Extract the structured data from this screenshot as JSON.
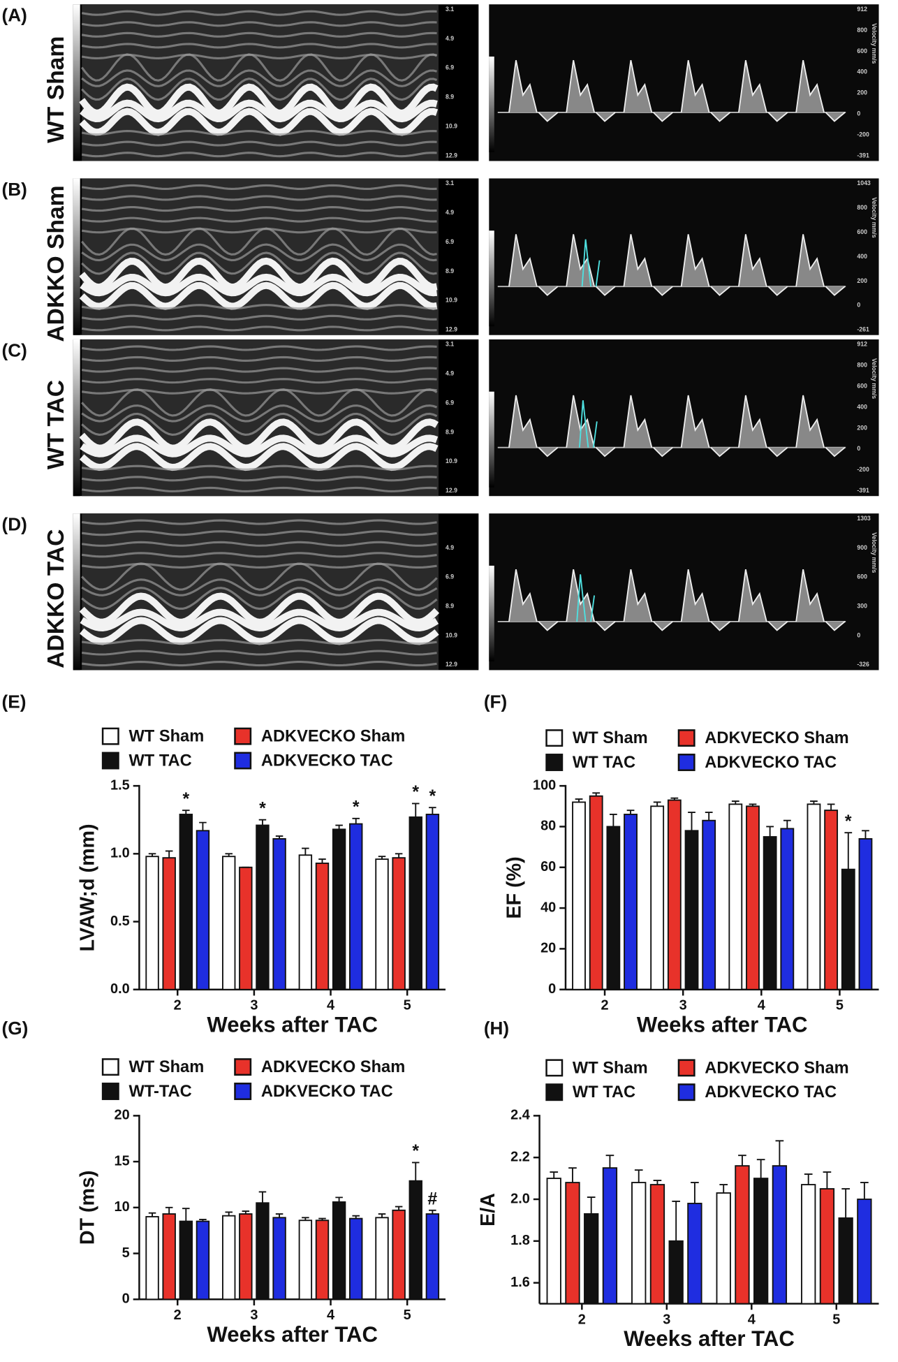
{
  "echo_panels": [
    {
      "label": "(A)",
      "row_label": "WT Sham",
      "depth_ticks": [
        3.1,
        4.9,
        6.9,
        8.9,
        10.9,
        12.9
      ],
      "velocity_label": "Velocity mm/s",
      "velocity_ticks": [
        912,
        800,
        600,
        400,
        200,
        0,
        -200,
        -391
      ]
    },
    {
      "label": "(B)",
      "row_label": "ADKKO Sham",
      "depth_ticks": [
        3.1,
        4.9,
        6.9,
        8.9,
        10.9,
        12.9
      ],
      "velocity_label": "Velocity mm/s",
      "velocity_ticks": [
        1043,
        800,
        600,
        400,
        200,
        0,
        -261
      ]
    },
    {
      "label": "(C)",
      "row_label": "WT TAC",
      "depth_ticks": [
        3.1,
        4.9,
        6.9,
        8.9,
        10.9,
        12.9
      ],
      "velocity_label": "Velocity mm/s",
      "velocity_ticks": [
        912,
        800,
        600,
        400,
        200,
        0,
        -200,
        -391
      ]
    },
    {
      "label": "(D)",
      "row_label": "ADKKO TAC",
      "depth_ticks": [
        4.9,
        6.9,
        8.9,
        10.9,
        12.9
      ],
      "velocity_label": "Velocity mm/s",
      "velocity_ticks": [
        1303,
        900,
        600,
        300,
        0,
        -326
      ]
    }
  ],
  "chart_data": [
    {
      "type": "bar",
      "panel": "(E)",
      "y_label": "LVAW;d (mm)",
      "x_label": "Weeks after TAC",
      "categories": [
        "2",
        "3",
        "4",
        "5"
      ],
      "series": [
        {
          "name": "WT Sham",
          "color": "#ffffff",
          "values": [
            0.98,
            0.98,
            0.99,
            0.96
          ],
          "errors": [
            0.02,
            0.02,
            0.05,
            0.02
          ]
        },
        {
          "name": "ADKVECKO Sham",
          "color": "#e8322a",
          "values": [
            0.97,
            0.9,
            0.93,
            0.97
          ],
          "errors": [
            0.05,
            0,
            0.03,
            0.03
          ]
        },
        {
          "name": "WT TAC",
          "color": "#111111",
          "values": [
            1.29,
            1.21,
            1.18,
            1.27
          ],
          "errors": [
            0.03,
            0.04,
            0.03,
            0.1
          ]
        },
        {
          "name": "ADKVECKO TAC",
          "color": "#1f2de0",
          "values": [
            1.17,
            1.11,
            1.22,
            1.29
          ],
          "errors": [
            0.06,
            0.02,
            0.04,
            0.05
          ]
        }
      ],
      "ylim": [
        0,
        1.5
      ],
      "yticks": [
        {
          "value": 0,
          "label": "0.0"
        },
        0.5,
        {
          "value": 1,
          "label": "1.0"
        },
        1.5
      ],
      "annotations": [
        {
          "text": "*",
          "series": 2,
          "category": 0
        },
        {
          "text": "*",
          "series": 2,
          "category": 1
        },
        {
          "text": "*",
          "series": 3,
          "category": 2
        },
        {
          "text": "*",
          "series": 2,
          "category": 3
        },
        {
          "text": "*",
          "series": 3,
          "category": 3
        }
      ]
    },
    {
      "type": "bar",
      "panel": "(F)",
      "y_label": "EF (%)",
      "x_label": "Weeks after TAC",
      "categories": [
        "2",
        "3",
        "4",
        "5"
      ],
      "series": [
        {
          "name": "WT Sham",
          "color": "#ffffff",
          "values": [
            92,
            90,
            91,
            91
          ],
          "errors": [
            1.5,
            2,
            1.5,
            1.5
          ]
        },
        {
          "name": "ADKVECKO Sham",
          "color": "#e8322a",
          "values": [
            95,
            93,
            90,
            88
          ],
          "errors": [
            1.5,
            1,
            1,
            3
          ]
        },
        {
          "name": "WT TAC",
          "color": "#111111",
          "values": [
            80,
            78,
            75,
            59
          ],
          "errors": [
            6,
            9,
            5,
            18
          ]
        },
        {
          "name": "ADKVECKO TAC",
          "color": "#1f2de0",
          "values": [
            86,
            83,
            79,
            74
          ],
          "errors": [
            2,
            4,
            4,
            4
          ]
        }
      ],
      "ylim": [
        0,
        100
      ],
      "yticks": [
        0,
        20,
        40,
        60,
        80,
        100
      ],
      "annotations": [
        {
          "text": "*",
          "series": 2,
          "category": 3
        }
      ]
    },
    {
      "type": "bar",
      "panel": "(G)",
      "y_label": "DT (ms)",
      "x_label": "Weeks after TAC",
      "categories": [
        "2",
        "3",
        "4",
        "5"
      ],
      "series": [
        {
          "name": "WT Sham",
          "color": "#ffffff",
          "values": [
            9.0,
            9.1,
            8.6,
            8.9
          ],
          "errors": [
            0.4,
            0.4,
            0.3,
            0.4
          ]
        },
        {
          "name": "ADKVECKO Sham",
          "color": "#e8322a",
          "values": [
            9.3,
            9.3,
            8.6,
            9.7
          ],
          "errors": [
            0.7,
            0.3,
            0.2,
            0.4
          ]
        },
        {
          "name": "WT-TAC",
          "color": "#111111",
          "values": [
            8.5,
            10.5,
            10.6,
            12.9
          ],
          "errors": [
            1.4,
            1.2,
            0.5,
            2.0
          ]
        },
        {
          "name": "ADKVECKO TAC",
          "color": "#1f2de0",
          "values": [
            8.5,
            8.9,
            8.8,
            9.3
          ],
          "errors": [
            0.2,
            0.4,
            0.3,
            0.4
          ]
        }
      ],
      "ylim": [
        0,
        20
      ],
      "yticks": [
        0,
        5,
        10,
        15,
        20
      ],
      "annotations": [
        {
          "text": "*",
          "series": 2,
          "category": 3
        },
        {
          "text": "#",
          "series": 3,
          "category": 3
        }
      ]
    },
    {
      "type": "bar",
      "panel": "(H)",
      "y_label": "E/A",
      "x_label": "Weeks after TAC",
      "categories": [
        "2",
        "3",
        "4",
        "5"
      ],
      "series": [
        {
          "name": "WT Sham",
          "color": "#ffffff",
          "values": [
            2.1,
            2.08,
            2.03,
            2.07
          ],
          "errors": [
            0.03,
            0.06,
            0.04,
            0.05
          ]
        },
        {
          "name": "ADKVECKO Sham",
          "color": "#e8322a",
          "values": [
            2.08,
            2.07,
            2.16,
            2.05
          ],
          "errors": [
            0.07,
            0.02,
            0.05,
            0.08
          ]
        },
        {
          "name": "WT TAC",
          "color": "#111111",
          "values": [
            1.93,
            1.8,
            2.1,
            1.91
          ],
          "errors": [
            0.08,
            0.19,
            0.09,
            0.14
          ]
        },
        {
          "name": "ADKVECKO TAC",
          "color": "#1f2de0",
          "values": [
            2.15,
            1.98,
            2.16,
            2.0
          ],
          "errors": [
            0.06,
            0.1,
            0.12,
            0.08
          ]
        }
      ],
      "ylim": [
        1.5,
        2.4
      ],
      "yticks": [
        1.6,
        1.8,
        {
          "value": 2,
          "label": "2.0"
        },
        2.2,
        2.4
      ],
      "annotations": []
    }
  ]
}
